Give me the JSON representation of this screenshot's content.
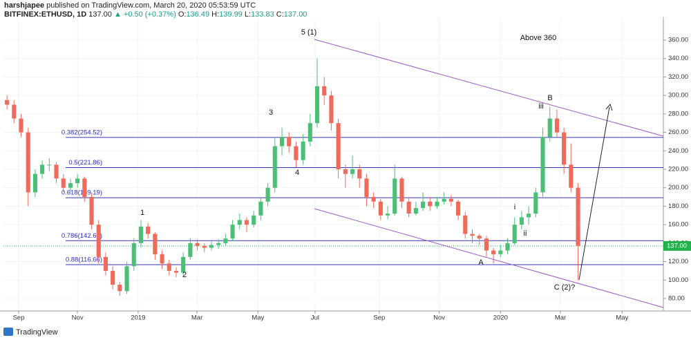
{
  "header": {
    "author": "harshjapee",
    "published": "published on TradingView.com, March 20, 2020 05:53:59 UTC",
    "symbol": "BITFINEX:ETHUSD, 1D",
    "price": "137.00",
    "change": "▲ +0.50 (+0.37%)",
    "ohlc": [
      {
        "key": "O:",
        "value": "136.49"
      },
      {
        "key": "H:",
        "value": "139.99"
      },
      {
        "key": "L:",
        "value": "133.83"
      },
      {
        "key": "C:",
        "value": "137.00"
      }
    ]
  },
  "chart_data": {
    "type": "candlestick",
    "up_color": "#4cbf76",
    "down_color": "#ef6a5a",
    "categories": [
      null,
      null,
      null,
      null,
      null,
      null,
      null,
      null,
      null,
      null,
      null,
      null,
      null,
      null,
      null,
      null,
      null,
      null,
      null,
      null,
      null,
      null,
      null,
      null,
      null,
      null,
      null,
      null,
      null,
      null,
      null,
      null,
      null,
      null,
      null,
      null,
      null,
      null,
      null,
      null,
      null,
      null,
      null,
      null,
      null,
      null,
      null,
      null,
      null,
      null,
      null,
      null,
      null,
      null,
      null,
      null,
      null,
      null,
      null,
      null,
      null,
      null,
      null,
      null,
      null,
      null,
      null,
      null,
      null,
      null,
      null,
      null,
      null,
      null,
      null,
      null,
      null,
      null,
      null,
      null,
      null,
      null
    ],
    "candles": [
      [
        295,
        300,
        285,
        290
      ],
      [
        290,
        295,
        270,
        275
      ],
      [
        275,
        280,
        255,
        260
      ],
      [
        260,
        265,
        180,
        195
      ],
      [
        195,
        220,
        190,
        215
      ],
      [
        215,
        230,
        210,
        225
      ],
      [
        225,
        232,
        218,
        225
      ],
      [
        225,
        228,
        205,
        210
      ],
      [
        210,
        215,
        195,
        200
      ],
      [
        200,
        210,
        195,
        205
      ],
      [
        205,
        215,
        200,
        210
      ],
      [
        210,
        212,
        185,
        190
      ],
      [
        190,
        195,
        155,
        160
      ],
      [
        160,
        165,
        118,
        125
      ],
      [
        125,
        130,
        105,
        110
      ],
      [
        110,
        115,
        90,
        95
      ],
      [
        95,
        98,
        83,
        88
      ],
      [
        88,
        120,
        85,
        115
      ],
      [
        115,
        145,
        110,
        140
      ],
      [
        140,
        165,
        135,
        158
      ],
      [
        158,
        162,
        145,
        150
      ],
      [
        150,
        152,
        122,
        128
      ],
      [
        128,
        132,
        112,
        118
      ],
      [
        118,
        122,
        105,
        110
      ],
      [
        110,
        114,
        103,
        108
      ],
      [
        108,
        130,
        105,
        125
      ],
      [
        125,
        145,
        122,
        140
      ],
      [
        140,
        144,
        132,
        137
      ],
      [
        137,
        140,
        130,
        135
      ],
      [
        135,
        142,
        132,
        138
      ],
      [
        138,
        144,
        134,
        140
      ],
      [
        140,
        150,
        137,
        145
      ],
      [
        145,
        165,
        142,
        160
      ],
      [
        160,
        172,
        155,
        165
      ],
      [
        165,
        168,
        152,
        160
      ],
      [
        160,
        175,
        157,
        170
      ],
      [
        170,
        190,
        165,
        185
      ],
      [
        185,
        205,
        180,
        200
      ],
      [
        200,
        255,
        195,
        245
      ],
      [
        245,
        265,
        235,
        255
      ],
      [
        255,
        260,
        238,
        245
      ],
      [
        245,
        250,
        222,
        230
      ],
      [
        230,
        258,
        225,
        250
      ],
      [
        250,
        280,
        245,
        270
      ],
      [
        270,
        340,
        265,
        310
      ],
      [
        310,
        320,
        290,
        300
      ],
      [
        300,
        305,
        262,
        270
      ],
      [
        270,
        275,
        210,
        220
      ],
      [
        220,
        225,
        200,
        215
      ],
      [
        215,
        235,
        210,
        220
      ],
      [
        220,
        225,
        200,
        210
      ],
      [
        210,
        215,
        180,
        190
      ],
      [
        190,
        195,
        178,
        185
      ],
      [
        185,
        188,
        165,
        170
      ],
      [
        170,
        180,
        166,
        172
      ],
      [
        172,
        225,
        170,
        210
      ],
      [
        210,
        212,
        178,
        185
      ],
      [
        185,
        190,
        168,
        172
      ],
      [
        172,
        185,
        170,
        178
      ],
      [
        178,
        195,
        175,
        185
      ],
      [
        185,
        190,
        175,
        180
      ],
      [
        180,
        190,
        177,
        185
      ],
      [
        185,
        195,
        182,
        188
      ],
      [
        188,
        192,
        180,
        185
      ],
      [
        185,
        187,
        165,
        170
      ],
      [
        170,
        174,
        145,
        150
      ],
      [
        150,
        155,
        140,
        148
      ],
      [
        148,
        150,
        138,
        145
      ],
      [
        145,
        148,
        125,
        132
      ],
      [
        132,
        135,
        118,
        128
      ],
      [
        128,
        138,
        125,
        132
      ],
      [
        132,
        145,
        128,
        140
      ],
      [
        140,
        168,
        138,
        160
      ],
      [
        160,
        175,
        155,
        168
      ],
      [
        168,
        180,
        160,
        172
      ],
      [
        172,
        200,
        168,
        195
      ],
      [
        195,
        265,
        190,
        255
      ],
      [
        255,
        288,
        250,
        275
      ],
      [
        275,
        285,
        255,
        260
      ],
      [
        260,
        265,
        215,
        225
      ],
      [
        225,
        248,
        195,
        200
      ],
      [
        200,
        205,
        100,
        137
      ]
    ],
    "xlim": [
      -0.5,
      93.1
    ],
    "xticks": [
      {
        "value": 1.66,
        "label": "Sep"
      },
      {
        "value": 10,
        "label": "Nov"
      },
      {
        "value": 18.6,
        "label": "2019"
      },
      {
        "value": 26.95,
        "label": "Mar"
      },
      {
        "value": 35.6,
        "label": "May"
      },
      {
        "value": 43.7,
        "label": "Jul"
      },
      {
        "value": 52.8,
        "label": "Sep"
      },
      {
        "value": 61.3,
        "label": "Nov"
      },
      {
        "value": 70,
        "label": "2020"
      },
      {
        "value": 78.5,
        "label": "Mar"
      },
      {
        "value": 87.25,
        "label": "May"
      }
    ],
    "ylim": [
      66.5,
      384.7
    ],
    "yticks": [
      {
        "value": 80,
        "label": "80.00"
      },
      {
        "value": 100,
        "label": "100.00"
      },
      {
        "value": 120,
        "label": "120.00"
      },
      {
        "value": 140,
        "label": "140.00"
      },
      {
        "value": 160,
        "label": "160.00"
      },
      {
        "value": 180,
        "label": "180.00"
      },
      {
        "value": 200,
        "label": "200.00"
      },
      {
        "value": 220,
        "label": "220.00"
      },
      {
        "value": 240,
        "label": "240.00"
      },
      {
        "value": 260,
        "label": "260.00"
      },
      {
        "value": 280,
        "label": "280.00"
      },
      {
        "value": 300,
        "label": "300.00"
      },
      {
        "value": 320,
        "label": "320.00"
      },
      {
        "value": 340,
        "label": "340.00"
      },
      {
        "value": 360,
        "label": "360.00"
      }
    ],
    "grid": true,
    "fib_levels": [
      {
        "value": 254.52,
        "label": "0.382(254.52)"
      },
      {
        "value": 221.86,
        "label": "0.5(221.86)"
      },
      {
        "value": 189.19,
        "label": "0.618(189.19)"
      },
      {
        "value": 142.68,
        "label": "0.786(142.68)"
      },
      {
        "value": 116.66,
        "label": "0.88(116.66)"
      }
    ],
    "fib_color": "#3535b5",
    "last": {
      "value": 137,
      "label": "137.00"
    },
    "last_color": "#22b24c",
    "annotations": [
      "5 (1)",
      "3",
      "4",
      "1",
      "2",
      "B",
      "iii",
      "i",
      "ii",
      "A",
      "C (2)?",
      "Above 360"
    ]
  },
  "footer": {
    "brand": "TradingView"
  }
}
